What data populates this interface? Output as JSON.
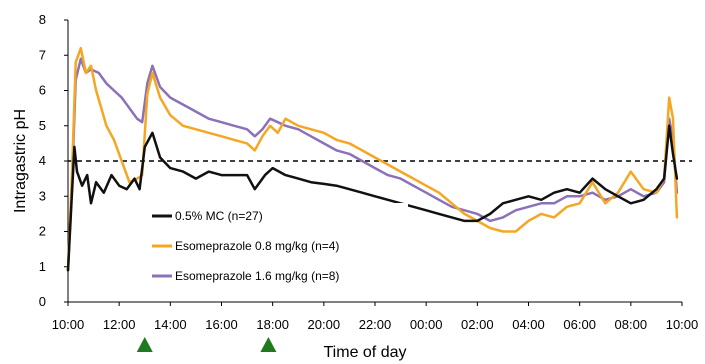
{
  "chart_data": {
    "type": "line",
    "xlabel": "Time of day",
    "ylabel": "Intragastric pH",
    "x_ticks": [
      "10:00",
      "12:00",
      "14:00",
      "16:00",
      "18:00",
      "20:00",
      "22:00",
      "00:00",
      "02:00",
      "04:00",
      "06:00",
      "08:00",
      "10:00"
    ],
    "x_range_hours": [
      0,
      24
    ],
    "ylim": [
      0,
      8
    ],
    "y_ticks": [
      0,
      1,
      2,
      3,
      4,
      5,
      6,
      7,
      8
    ],
    "grid": false,
    "legend_position": "bottom-left",
    "reference_line": {
      "y": 4,
      "style": "dashed",
      "color": "#000000"
    },
    "dosing_markers": {
      "times": [
        "13:00",
        "17:50"
      ],
      "color": "#1f7a1f",
      "shape": "triangle"
    },
    "series": [
      {
        "name": "0.5% MC (n=27)",
        "color": "#111111",
        "points": [
          [
            0.0,
            0.9
          ],
          [
            0.15,
            3.0
          ],
          [
            0.25,
            4.4
          ],
          [
            0.35,
            3.7
          ],
          [
            0.55,
            3.3
          ],
          [
            0.75,
            3.6
          ],
          [
            0.9,
            2.8
          ],
          [
            1.1,
            3.4
          ],
          [
            1.4,
            3.1
          ],
          [
            1.7,
            3.6
          ],
          [
            2.0,
            3.3
          ],
          [
            2.3,
            3.2
          ],
          [
            2.6,
            3.5
          ],
          [
            2.8,
            3.2
          ],
          [
            3.0,
            4.4
          ],
          [
            3.3,
            4.8
          ],
          [
            3.6,
            4.1
          ],
          [
            4.0,
            3.8
          ],
          [
            4.5,
            3.7
          ],
          [
            5.0,
            3.5
          ],
          [
            5.5,
            3.7
          ],
          [
            6.0,
            3.6
          ],
          [
            6.5,
            3.6
          ],
          [
            7.0,
            3.6
          ],
          [
            7.3,
            3.2
          ],
          [
            7.7,
            3.6
          ],
          [
            8.0,
            3.8
          ],
          [
            8.5,
            3.6
          ],
          [
            9.0,
            3.5
          ],
          [
            9.5,
            3.4
          ],
          [
            10.0,
            3.35
          ],
          [
            10.5,
            3.3
          ],
          [
            11.0,
            3.2
          ],
          [
            11.5,
            3.1
          ],
          [
            12.0,
            3.0
          ],
          [
            12.5,
            2.9
          ],
          [
            13.0,
            2.8
          ],
          [
            13.5,
            2.7
          ],
          [
            14.0,
            2.6
          ],
          [
            14.5,
            2.5
          ],
          [
            15.0,
            2.4
          ],
          [
            15.5,
            2.3
          ],
          [
            16.0,
            2.3
          ],
          [
            16.5,
            2.5
          ],
          [
            17.0,
            2.8
          ],
          [
            17.5,
            2.9
          ],
          [
            18.0,
            3.0
          ],
          [
            18.5,
            2.9
          ],
          [
            19.0,
            3.1
          ],
          [
            19.5,
            3.2
          ],
          [
            20.0,
            3.1
          ],
          [
            20.5,
            3.5
          ],
          [
            21.0,
            3.2
          ],
          [
            21.5,
            3.0
          ],
          [
            22.0,
            2.8
          ],
          [
            22.5,
            2.9
          ],
          [
            23.0,
            3.2
          ],
          [
            23.3,
            3.5
          ],
          [
            23.5,
            5.0
          ],
          [
            23.65,
            4.2
          ],
          [
            23.8,
            3.5
          ]
        ]
      },
      {
        "name": "Esomeprazole 0.8 mg/kg (n=4)",
        "color": "#f5a623",
        "points": [
          [
            0.0,
            0.9
          ],
          [
            0.15,
            3.5
          ],
          [
            0.3,
            6.8
          ],
          [
            0.5,
            7.2
          ],
          [
            0.7,
            6.5
          ],
          [
            0.9,
            6.7
          ],
          [
            1.1,
            6.0
          ],
          [
            1.3,
            5.5
          ],
          [
            1.5,
            5.0
          ],
          [
            1.8,
            4.6
          ],
          [
            2.1,
            4.0
          ],
          [
            2.4,
            3.4
          ],
          [
            2.7,
            3.5
          ],
          [
            2.9,
            3.6
          ],
          [
            3.1,
            5.9
          ],
          [
            3.3,
            6.5
          ],
          [
            3.6,
            5.8
          ],
          [
            4.0,
            5.3
          ],
          [
            4.5,
            5.0
          ],
          [
            5.0,
            4.9
          ],
          [
            5.5,
            4.8
          ],
          [
            6.0,
            4.7
          ],
          [
            6.5,
            4.6
          ],
          [
            7.0,
            4.5
          ],
          [
            7.3,
            4.3
          ],
          [
            7.6,
            4.7
          ],
          [
            7.9,
            5.0
          ],
          [
            8.2,
            4.8
          ],
          [
            8.5,
            5.2
          ],
          [
            9.0,
            5.0
          ],
          [
            9.5,
            4.9
          ],
          [
            10.0,
            4.8
          ],
          [
            10.5,
            4.6
          ],
          [
            11.0,
            4.5
          ],
          [
            11.5,
            4.3
          ],
          [
            12.0,
            4.1
          ],
          [
            12.5,
            3.9
          ],
          [
            13.0,
            3.7
          ],
          [
            13.5,
            3.5
          ],
          [
            14.0,
            3.3
          ],
          [
            14.5,
            3.1
          ],
          [
            15.0,
            2.8
          ],
          [
            15.5,
            2.5
          ],
          [
            16.0,
            2.3
          ],
          [
            16.5,
            2.1
          ],
          [
            17.0,
            2.0
          ],
          [
            17.5,
            2.0
          ],
          [
            18.0,
            2.3
          ],
          [
            18.5,
            2.5
          ],
          [
            19.0,
            2.4
          ],
          [
            19.5,
            2.7
          ],
          [
            20.0,
            2.8
          ],
          [
            20.5,
            3.4
          ],
          [
            21.0,
            2.8
          ],
          [
            21.5,
            3.1
          ],
          [
            22.0,
            3.7
          ],
          [
            22.5,
            3.2
          ],
          [
            23.0,
            3.1
          ],
          [
            23.3,
            3.5
          ],
          [
            23.5,
            5.8
          ],
          [
            23.65,
            5.2
          ],
          [
            23.8,
            2.4
          ]
        ]
      },
      {
        "name": "Esomeprazole 1.6 mg/kg (n=8)",
        "color": "#8b72b8",
        "points": [
          [
            0.0,
            0.9
          ],
          [
            0.15,
            3.2
          ],
          [
            0.3,
            6.3
          ],
          [
            0.5,
            6.9
          ],
          [
            0.7,
            6.5
          ],
          [
            0.9,
            6.6
          ],
          [
            1.2,
            6.5
          ],
          [
            1.5,
            6.2
          ],
          [
            1.8,
            6.0
          ],
          [
            2.1,
            5.8
          ],
          [
            2.4,
            5.5
          ],
          [
            2.7,
            5.2
          ],
          [
            2.9,
            5.1
          ],
          [
            3.1,
            6.2
          ],
          [
            3.3,
            6.7
          ],
          [
            3.6,
            6.1
          ],
          [
            4.0,
            5.8
          ],
          [
            4.5,
            5.6
          ],
          [
            5.0,
            5.4
          ],
          [
            5.5,
            5.2
          ],
          [
            6.0,
            5.1
          ],
          [
            6.5,
            5.0
          ],
          [
            7.0,
            4.9
          ],
          [
            7.3,
            4.7
          ],
          [
            7.6,
            4.9
          ],
          [
            7.9,
            5.2
          ],
          [
            8.2,
            5.1
          ],
          [
            8.5,
            5.0
          ],
          [
            9.0,
            4.9
          ],
          [
            9.5,
            4.7
          ],
          [
            10.0,
            4.5
          ],
          [
            10.5,
            4.3
          ],
          [
            11.0,
            4.2
          ],
          [
            11.5,
            4.0
          ],
          [
            12.0,
            3.8
          ],
          [
            12.5,
            3.6
          ],
          [
            13.0,
            3.5
          ],
          [
            13.5,
            3.3
          ],
          [
            14.0,
            3.1
          ],
          [
            14.5,
            2.9
          ],
          [
            15.0,
            2.7
          ],
          [
            15.5,
            2.6
          ],
          [
            16.0,
            2.5
          ],
          [
            16.5,
            2.3
          ],
          [
            17.0,
            2.4
          ],
          [
            17.5,
            2.6
          ],
          [
            18.0,
            2.7
          ],
          [
            18.5,
            2.8
          ],
          [
            19.0,
            2.8
          ],
          [
            19.5,
            3.0
          ],
          [
            20.0,
            3.0
          ],
          [
            20.5,
            3.1
          ],
          [
            21.0,
            2.9
          ],
          [
            21.5,
            3.0
          ],
          [
            22.0,
            3.2
          ],
          [
            22.5,
            3.0
          ],
          [
            23.0,
            3.1
          ],
          [
            23.3,
            3.4
          ],
          [
            23.5,
            5.2
          ],
          [
            23.65,
            4.6
          ],
          [
            23.8,
            3.1
          ]
        ]
      }
    ]
  }
}
